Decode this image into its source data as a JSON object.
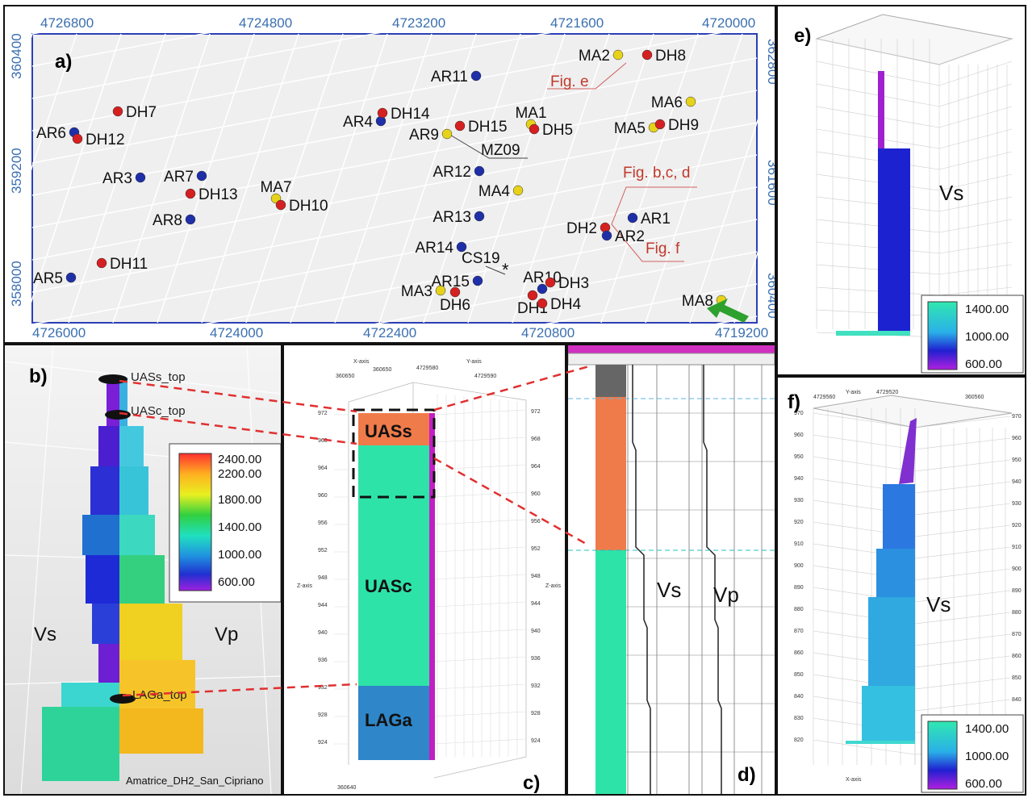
{
  "panel_a": {
    "label": "a)",
    "top_axis": [
      "4726800",
      "4724800",
      "4723200",
      "4721600",
      "4720000"
    ],
    "bottom_axis": [
      "4726000",
      "4724000",
      "4722400",
      "4720800",
      "4719200"
    ],
    "left_axis": [
      "360400",
      "359200",
      "358000"
    ],
    "right_axis": [
      "362800",
      "361600",
      "360400"
    ],
    "points": [
      {
        "id": "MA2",
        "color": "yellow"
      },
      {
        "id": "DH8",
        "color": "red"
      },
      {
        "id": "AR11",
        "color": "blue"
      },
      {
        "id": "MA6",
        "color": "yellow"
      },
      {
        "id": "DH7",
        "color": "red"
      },
      {
        "id": "AR4",
        "color": "blue"
      },
      {
        "id": "DH14",
        "color": "red"
      },
      {
        "id": "MA1",
        "color": "yellow"
      },
      {
        "id": "DH5",
        "color": "red"
      },
      {
        "id": "MA5",
        "color": "yellow"
      },
      {
        "id": "DH9",
        "color": "red"
      },
      {
        "id": "AR6",
        "color": "blue"
      },
      {
        "id": "DH12",
        "color": "red"
      },
      {
        "id": "AR9",
        "color": "yellow"
      },
      {
        "id": "DH15",
        "color": "red"
      },
      {
        "id": "AR3",
        "color": "blue"
      },
      {
        "id": "AR7",
        "color": "blue"
      },
      {
        "id": "AR12",
        "color": "blue"
      },
      {
        "id": "DH13",
        "color": "red"
      },
      {
        "id": "MA7",
        "color": "yellow"
      },
      {
        "id": "DH10",
        "color": "red"
      },
      {
        "id": "MA4",
        "color": "yellow"
      },
      {
        "id": "AR8",
        "color": "blue"
      },
      {
        "id": "AR13",
        "color": "blue"
      },
      {
        "id": "AR1",
        "color": "blue"
      },
      {
        "id": "DH2",
        "color": "red"
      },
      {
        "id": "AR2",
        "color": "blue"
      },
      {
        "id": "AR14",
        "color": "blue"
      },
      {
        "id": "AR5",
        "color": "blue"
      },
      {
        "id": "DH11",
        "color": "red"
      },
      {
        "id": "AR15",
        "color": "blue"
      },
      {
        "id": "AR10",
        "color": "blue"
      },
      {
        "id": "DH3",
        "color": "red"
      },
      {
        "id": "MA3",
        "color": "yellow"
      },
      {
        "id": "DH6",
        "color": "red"
      },
      {
        "id": "DH1",
        "color": "red"
      },
      {
        "id": "DH4",
        "color": "red"
      },
      {
        "id": "MA8",
        "color": "yellow"
      }
    ],
    "mz09": "MZ09",
    "cs19": "CS19",
    "fig_e": "Fig. e",
    "fig_bcd": "Fig. b,c, d",
    "fig_f": "Fig. f"
  },
  "panel_b": {
    "label": "b)",
    "uass_top": "UASs_top",
    "uasc_top": "UASc_top",
    "laga_top": "LAGa_top",
    "vs": "Vs",
    "vp": "Vp",
    "caption": "Amatrice_DH2_San_Cipriano",
    "legend": [
      "2400.00",
      "2200.00",
      "1800.00",
      "1400.00",
      "1000.00",
      "600.00"
    ]
  },
  "panel_c": {
    "label": "c)",
    "x_axis": "X-axis",
    "y_axis": "Y-axis",
    "z_axis": "Z-axis",
    "x_val": "360650",
    "y_val": "4729580",
    "y_val2": "4729590",
    "x_bottom": "360640",
    "ticks": [
      "972",
      "968",
      "964",
      "960",
      "956",
      "952",
      "948",
      "944",
      "940",
      "936",
      "932",
      "928",
      "924"
    ],
    "uass": "UASs",
    "uasc": "UASc",
    "laga": "LAGa"
  },
  "panel_d": {
    "label": "d)",
    "vs": "Vs",
    "vp": "Vp"
  },
  "panel_e": {
    "label": "e)",
    "vs": "Vs",
    "legend": [
      "1400.00",
      "1000.00",
      "600.00"
    ]
  },
  "panel_f": {
    "label": "f)",
    "vs": "Vs",
    "y_axis": "Y-axis",
    "x_axis": "X-axis",
    "top_vals": [
      "4729560",
      "4729520",
      "360560"
    ],
    "ticks": [
      "970",
      "960",
      "950",
      "940",
      "930",
      "920",
      "910",
      "900",
      "890",
      "880",
      "870",
      "860",
      "850",
      "840",
      "830",
      "820"
    ],
    "legend": [
      "1400.00",
      "1000.00",
      "600.00"
    ]
  },
  "colors": {
    "red": "#d42020",
    "blue": "#1f2fa8",
    "yellow": "#e6d21a",
    "teal": "#2ee3a8",
    "orange": "#f07b4a",
    "laga": "#2f86c8",
    "magenta": "#c21fc2"
  }
}
